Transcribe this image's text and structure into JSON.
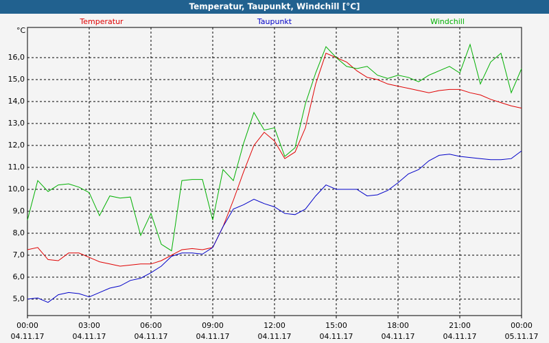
{
  "chart_data": {
    "type": "line",
    "title": "Temperatur, Taupunkt, Windchill [°C]",
    "y_unit": "°C",
    "x": [
      0,
      0.5,
      1,
      1.5,
      2,
      2.5,
      3,
      3.5,
      4,
      4.5,
      5,
      5.5,
      6,
      6.5,
      7,
      7.5,
      8,
      8.5,
      9,
      9.5,
      10,
      10.5,
      11,
      11.5,
      12,
      12.5,
      13,
      13.5,
      14,
      14.5,
      15,
      15.5,
      16,
      16.5,
      17,
      17.5,
      18,
      18.5,
      19,
      19.5,
      20,
      20.5,
      21,
      21.5,
      22,
      22.5,
      23,
      23.5,
      24
    ],
    "series": [
      {
        "name": "Temperatur",
        "color": "#e00000",
        "values": [
          7.25,
          7.35,
          6.8,
          6.75,
          7.1,
          7.1,
          6.9,
          6.7,
          6.6,
          6.5,
          6.55,
          6.6,
          6.6,
          6.75,
          7.0,
          7.25,
          7.3,
          7.25,
          7.35,
          8.3,
          9.5,
          10.8,
          12.0,
          12.6,
          12.2,
          11.4,
          11.7,
          12.8,
          14.8,
          16.2,
          16.0,
          15.8,
          15.4,
          15.1,
          15.0,
          14.8,
          14.7,
          14.6,
          14.5,
          14.4,
          14.5,
          14.55,
          14.55,
          14.4,
          14.3,
          14.1,
          13.95,
          13.8,
          13.7
        ]
      },
      {
        "name": "Taupunkt",
        "color": "#0000c8",
        "values": [
          5.0,
          5.05,
          4.85,
          5.2,
          5.3,
          5.25,
          5.1,
          5.3,
          5.5,
          5.6,
          5.85,
          5.95,
          6.2,
          6.5,
          6.95,
          7.1,
          7.1,
          7.05,
          7.35,
          8.3,
          9.1,
          9.3,
          9.55,
          9.35,
          9.2,
          8.9,
          8.85,
          9.1,
          9.7,
          10.2,
          10.0,
          10.0,
          10.0,
          9.7,
          9.75,
          9.95,
          10.3,
          10.7,
          10.9,
          11.3,
          11.55,
          11.6,
          11.5,
          11.45,
          11.4,
          11.35,
          11.35,
          11.4,
          11.75
        ]
      },
      {
        "name": "Windchill",
        "color": "#00b000",
        "values": [
          8.6,
          10.4,
          9.9,
          10.2,
          10.25,
          10.1,
          9.85,
          8.8,
          9.7,
          9.6,
          9.65,
          7.9,
          8.9,
          7.5,
          7.2,
          10.4,
          10.45,
          10.45,
          8.6,
          10.9,
          10.4,
          12.1,
          13.5,
          12.7,
          12.8,
          11.5,
          11.9,
          13.9,
          15.3,
          16.5,
          16.0,
          15.6,
          15.5,
          15.6,
          15.2,
          15.05,
          15.2,
          15.1,
          14.9,
          15.2,
          15.4,
          15.6,
          15.3,
          16.6,
          14.8,
          15.8,
          16.2,
          14.4,
          15.5
        ]
      }
    ],
    "xlim": [
      0,
      24
    ],
    "xticks": [
      {
        "value": 0,
        "label": "00:00 04.11.17"
      },
      {
        "value": 3,
        "label": "03:00 04.11.17"
      },
      {
        "value": 6,
        "label": "06:00 04.11.17"
      },
      {
        "value": 9,
        "label": "09:00 04.11.17"
      },
      {
        "value": 12,
        "label": "12:00 04.11.17"
      },
      {
        "value": 15,
        "label": "15:00 04.11.17"
      },
      {
        "value": 18,
        "label": "18:00 04.11.17"
      },
      {
        "value": 21,
        "label": "21:00 04.11.17"
      },
      {
        "value": 24,
        "label": "00:00 05.11.17"
      }
    ],
    "ylim": [
      4.25,
      17.375
    ],
    "yticks": [
      {
        "value": 5,
        "label": "5,0"
      },
      {
        "value": 6,
        "label": "6,0"
      },
      {
        "value": 7,
        "label": "7,0"
      },
      {
        "value": 8,
        "label": "8,0"
      },
      {
        "value": 9,
        "label": "9,0"
      },
      {
        "value": 10,
        "label": "10,0"
      },
      {
        "value": 11,
        "label": "11,0"
      },
      {
        "value": 12,
        "label": "12,0"
      },
      {
        "value": 13,
        "label": "13,0"
      },
      {
        "value": 14,
        "label": "14,0"
      },
      {
        "value": 15,
        "label": "15,0"
      },
      {
        "value": 16,
        "label": "16,0"
      }
    ],
    "grid": true
  }
}
